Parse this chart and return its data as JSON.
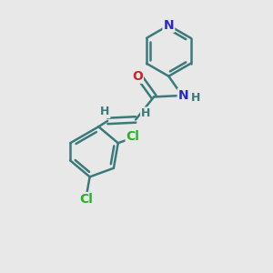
{
  "background_color": "#e8e8e8",
  "bond_color": "#3a7a7a",
  "nitrogen_color": "#2828c8",
  "oxygen_color": "#c82828",
  "chlorine_color": "#28b028",
  "line_width": 1.8,
  "font_size_atoms": 10,
  "fig_size": [
    3.0,
    3.0
  ],
  "dpi": 100,
  "xlim": [
    0,
    10
  ],
  "ylim": [
    0,
    10
  ]
}
